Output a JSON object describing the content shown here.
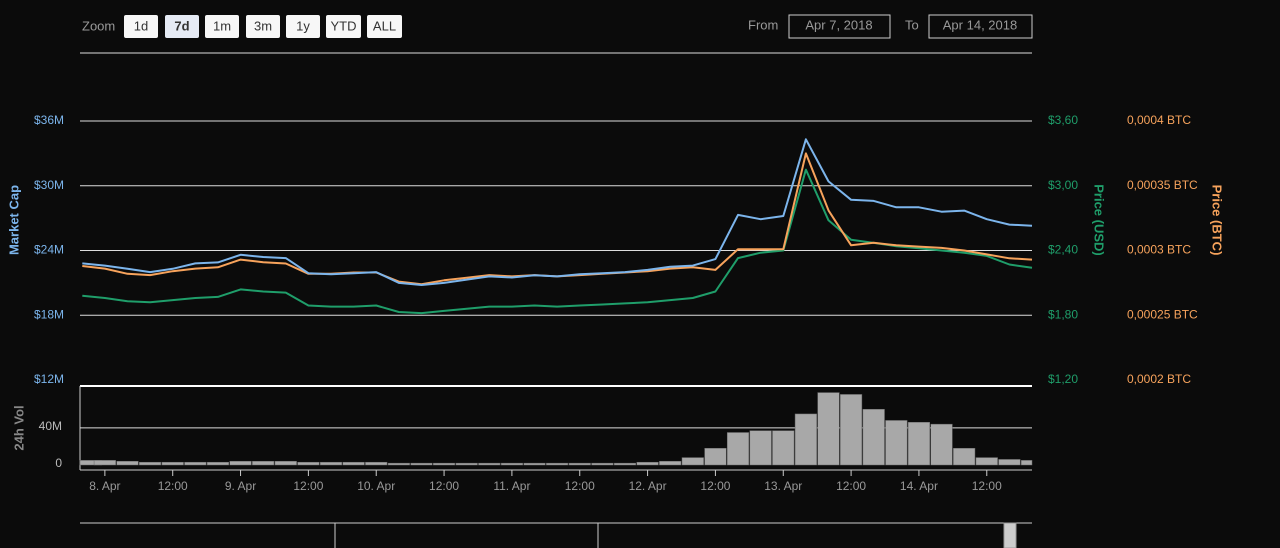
{
  "controls": {
    "zoom_label": "Zoom",
    "buttons": [
      "1d",
      "7d",
      "1m",
      "3m",
      "1y",
      "YTD",
      "ALL"
    ],
    "selected": 1,
    "from_label": "From",
    "from": "Apr 7, 2018",
    "to_label": "To",
    "to": "Apr 14, 2018"
  },
  "chart_data": [
    {
      "type": "line",
      "x": [
        -4,
        0,
        4,
        8,
        12,
        16,
        20,
        24,
        28,
        32,
        36,
        40,
        44,
        48,
        52,
        56,
        60,
        64,
        68,
        72,
        76,
        80,
        84,
        88,
        92,
        96,
        100,
        104,
        108,
        112,
        116,
        120,
        124,
        128,
        132,
        136,
        140,
        144,
        148,
        152,
        156,
        160,
        164
      ],
      "xlim": [
        -4.4,
        164
      ],
      "ylabel": "Market Cap",
      "y2label": "Price (USD)",
      "y3label": "Price (BTC)",
      "ylim": [
        12,
        36
      ],
      "yticks": [
        {
          "value": 12,
          "label": "$12M"
        },
        {
          "value": 18,
          "label": "$18M"
        },
        {
          "value": 24,
          "label": "$24M"
        },
        {
          "value": 30,
          "label": "$30M"
        },
        {
          "value": 36,
          "label": "$36M"
        }
      ],
      "y2lim": [
        1.2,
        3.6
      ],
      "y2ticks": [
        {
          "value": 1.2,
          "label": "$1,20"
        },
        {
          "value": 1.8,
          "label": "$1,80"
        },
        {
          "value": 2.4,
          "label": "$2,40"
        },
        {
          "value": 3.0,
          "label": "$3,00"
        },
        {
          "value": 3.6,
          "label": "$3,60"
        }
      ],
      "y3lim": [
        0.0002,
        0.0004
      ],
      "y3ticks": [
        {
          "value": 0.0002,
          "label": "0,0002 BTC"
        },
        {
          "value": 0.00025,
          "label": "0,00025 BTC"
        },
        {
          "value": 0.0003,
          "label": "0,0003 BTC"
        },
        {
          "value": 0.00035,
          "label": "0,00035 BTC"
        },
        {
          "value": 0.0004,
          "label": "0,0004 BTC"
        }
      ],
      "grid": true,
      "series": [
        {
          "name": "Market Cap",
          "color": "#7cb5ec",
          "axis": "y",
          "values": [
            22.8,
            22.6,
            22.3,
            22.0,
            22.3,
            22.8,
            22.9,
            23.6,
            23.4,
            23.3,
            21.9,
            21.8,
            21.9,
            22.0,
            21.0,
            20.8,
            21.0,
            21.3,
            21.6,
            21.5,
            21.7,
            21.6,
            21.8,
            21.9,
            22.0,
            22.2,
            22.5,
            22.6,
            23.2,
            27.3,
            26.9,
            27.2,
            34.3,
            30.4,
            28.7,
            28.6,
            28.0,
            28.0,
            27.6,
            27.7,
            26.9,
            26.4,
            26.3
          ]
        },
        {
          "name": "Price (USD)",
          "color": "#1f9e6a",
          "axis": "y2",
          "values": [
            1.98,
            1.96,
            1.93,
            1.92,
            1.94,
            1.96,
            1.97,
            2.04,
            2.02,
            2.01,
            1.89,
            1.88,
            1.88,
            1.89,
            1.83,
            1.82,
            1.84,
            1.86,
            1.88,
            1.88,
            1.89,
            1.88,
            1.89,
            1.9,
            1.91,
            1.92,
            1.94,
            1.96,
            2.02,
            2.33,
            2.38,
            2.4,
            3.15,
            2.68,
            2.5,
            2.47,
            2.44,
            2.42,
            2.4,
            2.38,
            2.35,
            2.27,
            2.24
          ]
        },
        {
          "name": "Price (BTC)",
          "color": "#f7a35c",
          "axis": "y3",
          "values": [
            0.000288,
            0.000286,
            0.000282,
            0.000281,
            0.000284,
            0.000286,
            0.000287,
            0.000293,
            0.000291,
            0.00029,
            0.000282,
            0.000282,
            0.000283,
            0.000283,
            0.000276,
            0.000274,
            0.000277,
            0.000279,
            0.000281,
            0.00028,
            0.000281,
            0.00028,
            0.000281,
            0.000282,
            0.000283,
            0.000284,
            0.000286,
            0.000287,
            0.000285,
            0.000301,
            0.000301,
            0.000301,
            0.000375,
            0.000331,
            0.000304,
            0.000306,
            0.000304,
            0.000303,
            0.000302,
            0.0003,
            0.000297,
            0.000294,
            0.000293
          ]
        }
      ]
    },
    {
      "type": "bar",
      "ylabel": "24h Vol",
      "x": [
        -4,
        0,
        4,
        8,
        12,
        16,
        20,
        24,
        28,
        32,
        36,
        40,
        44,
        48,
        52,
        56,
        60,
        64,
        68,
        72,
        76,
        80,
        84,
        88,
        92,
        96,
        100,
        104,
        108,
        112,
        116,
        120,
        124,
        128,
        132,
        136,
        140,
        144,
        148,
        152,
        156,
        160,
        164
      ],
      "xlim": [
        -4.4,
        164
      ],
      "xticks": [
        {
          "value": 0,
          "label": "8. Apr"
        },
        {
          "value": 12,
          "label": "12:00"
        },
        {
          "value": 24,
          "label": "9. Apr"
        },
        {
          "value": 36,
          "label": "12:00"
        },
        {
          "value": 48,
          "label": "10. Apr"
        },
        {
          "value": 60,
          "label": "12:00"
        },
        {
          "value": 72,
          "label": "11. Apr"
        },
        {
          "value": 84,
          "label": "12:00"
        },
        {
          "value": 96,
          "label": "12. Apr"
        },
        {
          "value": 108,
          "label": "12:00"
        },
        {
          "value": 120,
          "label": "13. Apr"
        },
        {
          "value": 132,
          "label": "12:00"
        },
        {
          "value": 144,
          "label": "14. Apr"
        },
        {
          "value": 156,
          "label": "12:00"
        }
      ],
      "ylim": [
        0,
        84
      ],
      "yticks": [
        0,
        {
          "value": 40,
          "label": "40M"
        }
      ],
      "color": "#a8a8a8",
      "values": [
        5,
        5,
        4,
        3,
        3,
        3,
        3,
        4,
        4,
        4,
        3,
        3,
        3,
        3,
        2,
        2,
        2,
        2,
        2,
        2,
        2,
        2,
        2,
        2,
        2,
        3,
        4,
        8,
        18,
        35,
        37,
        37,
        55,
        78,
        76,
        60,
        48,
        46,
        44,
        18,
        8,
        6,
        5
      ]
    }
  ]
}
